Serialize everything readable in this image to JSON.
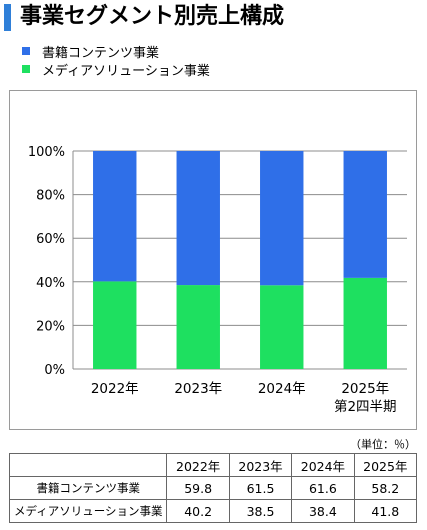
{
  "title": "事業セグメント別売上構成",
  "unit_note": "（単位：％）",
  "colors": {
    "accent": "#2f7fd8",
    "series1": "#2f6fe8",
    "series2": "#1ee060"
  },
  "chart_data": {
    "type": "bar",
    "stacked": true,
    "categories": [
      "2022年",
      "2023年",
      "2024年",
      "2025年\n第2四半期"
    ],
    "series": [
      {
        "name": "書籍コンテンツ事業",
        "values": [
          59.8,
          61.5,
          61.6,
          58.2
        ],
        "color": "#2f6fe8"
      },
      {
        "name": "メディアソリューション事業",
        "values": [
          40.2,
          38.5,
          38.4,
          41.8
        ],
        "color": "#1ee060"
      }
    ],
    "ylim": [
      0,
      100
    ],
    "yticks": [
      "0%",
      "20%",
      "40%",
      "60%",
      "80%",
      "100%"
    ],
    "grid": true,
    "legend_position": "top-left"
  },
  "table": {
    "headers": [
      "",
      "2022年",
      "2023年",
      "2024年",
      "2025年"
    ],
    "rows": [
      {
        "label": "書籍コンテンツ事業",
        "values": [
          "59.8",
          "61.5",
          "61.6",
          "58.2"
        ]
      },
      {
        "label": "メディアソリューション事業",
        "values": [
          "40.2",
          "38.5",
          "38.4",
          "41.8"
        ]
      }
    ]
  }
}
